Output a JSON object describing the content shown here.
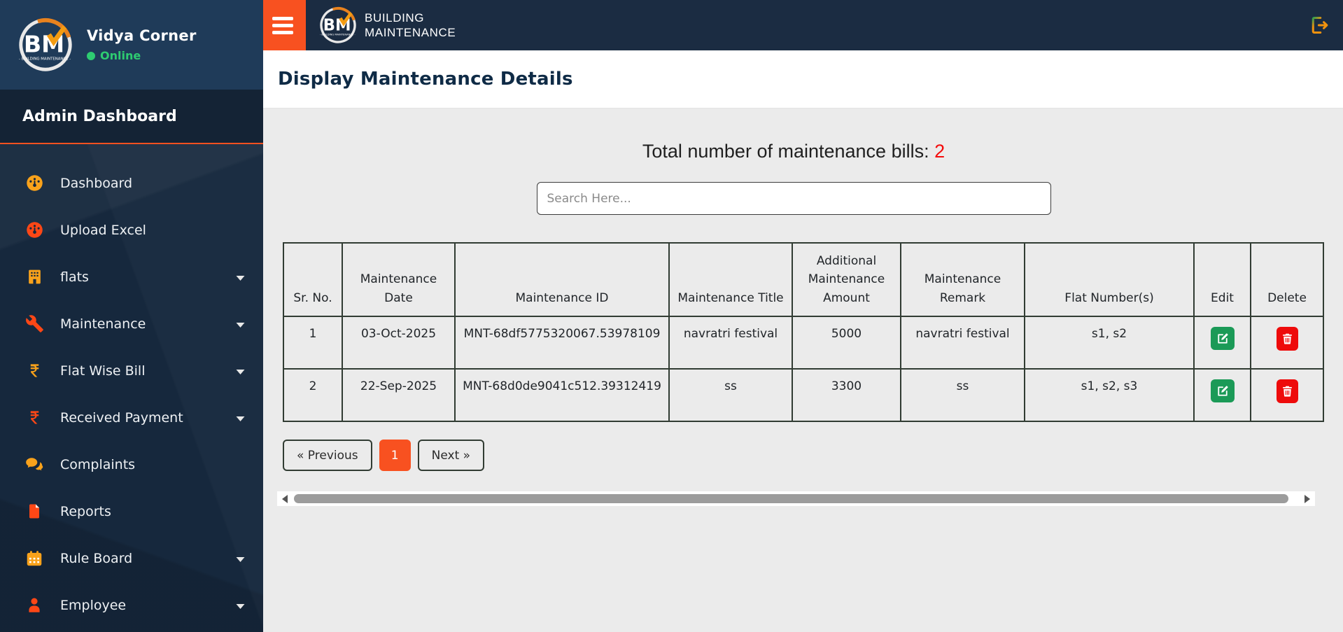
{
  "brand": {
    "name": "Vidya Corner",
    "status": "Online",
    "logo_text": "BM",
    "logo_subtext": "BUILDING MAINTENANCE"
  },
  "topbar": {
    "title_line1": "BUILDING",
    "title_line2": "MAINTENANCE"
  },
  "sidebar": {
    "header": "Admin Dashboard",
    "items": [
      {
        "label": "Dashboard",
        "icon": "gauge-icon",
        "color": "#f9a21b",
        "expandable": false
      },
      {
        "label": "Upload Excel",
        "icon": "gauge-icon",
        "color": "#fd4716",
        "expandable": false
      },
      {
        "label": "flats",
        "icon": "building-icon",
        "color": "#f9a21b",
        "expandable": true
      },
      {
        "label": "Maintenance",
        "icon": "wrench-icon",
        "color": "#fd4716",
        "expandable": true
      },
      {
        "label": "Flat Wise Bill",
        "icon": "rupee-icon",
        "color": "#f9a21b",
        "expandable": true
      },
      {
        "label": "Received Payment",
        "icon": "rupee-icon",
        "color": "#fd4716",
        "expandable": true
      },
      {
        "label": "Complaints",
        "icon": "chat-icon",
        "color": "#f9a21b",
        "expandable": false
      },
      {
        "label": "Reports",
        "icon": "file-icon",
        "color": "#fd4716",
        "expandable": false
      },
      {
        "label": "Rule Board",
        "icon": "calendar-icon",
        "color": "#f9a21b",
        "expandable": true
      },
      {
        "label": "Employee",
        "icon": "person-icon",
        "color": "#fd4716",
        "expandable": true
      }
    ]
  },
  "page": {
    "title": "Display Maintenance Details",
    "total_label": "Total number of maintenance bills:",
    "total_count": "2",
    "search_placeholder": "Search Here..."
  },
  "table": {
    "columns": [
      "Sr. No.",
      "Maintenance Date",
      "Maintenance ID",
      "Maintenance Title",
      "Additional Maintenance Amount",
      "Maintenance Remark",
      "Flat Number(s)",
      "Edit",
      "Delete"
    ],
    "rows": [
      {
        "cells": [
          "1",
          "03-Oct-2025",
          "MNT-68df5775320067.53978109",
          "navratri festival",
          "5000",
          "navratri festival",
          "s1, s2"
        ]
      },
      {
        "cells": [
          "2",
          "22-Sep-2025",
          "MNT-68d0de9041c512.39312419",
          "ss",
          "3300",
          "ss",
          "s1, s2, s3"
        ]
      }
    ]
  },
  "pagination": {
    "previous_label": "« Previous",
    "page_label": "1",
    "next_label": "Next »"
  },
  "colors": {
    "accent_orange": "#f85120",
    "amber": "#f9a21b",
    "red_orange": "#fd4716",
    "edit_green": "#1b9a57",
    "delete_red": "#ee0b0b",
    "count_red": "#f40b0b",
    "online_green": "#2ecc71",
    "sidebar_bg": "#16283d",
    "brand_bg": "#1f3b59",
    "topbar_bg": "#1b2c42"
  }
}
